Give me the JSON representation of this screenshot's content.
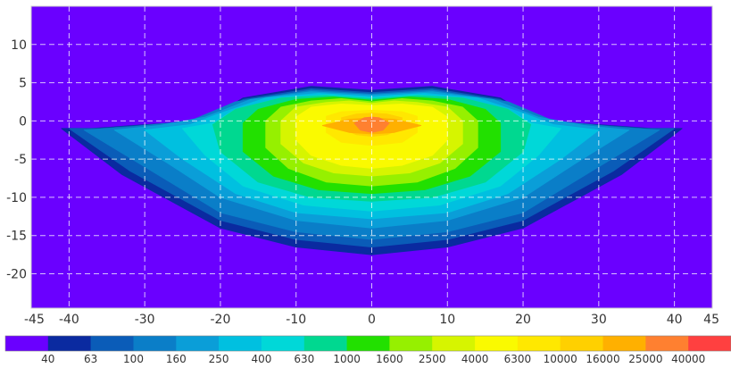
{
  "chart_data": {
    "type": "heatmap",
    "title": "",
    "xlabel": "",
    "ylabel": "",
    "xlim": [
      -45,
      45
    ],
    "ylim": [
      -24.5,
      15
    ],
    "x_ticks": [
      -45,
      -40,
      -30,
      -20,
      -10,
      0,
      10,
      20,
      30,
      40,
      45
    ],
    "y_ticks": [
      10,
      5,
      0,
      -5,
      -10,
      -15,
      -20
    ],
    "grid": true,
    "background_color": "#6a00ff",
    "color_levels": [
      {
        "label": "40",
        "color": "#6a00ff"
      },
      {
        "label": "63",
        "color": "#0a2aa0"
      },
      {
        "label": "100",
        "color": "#0a5cb8"
      },
      {
        "label": "160",
        "color": "#0a7ec8"
      },
      {
        "label": "250",
        "color": "#0a9ed8"
      },
      {
        "label": "400",
        "color": "#00c0e0"
      },
      {
        "label": "630",
        "color": "#00d8d8"
      },
      {
        "label": "1000",
        "color": "#00d890"
      },
      {
        "label": "1600",
        "color": "#22e000"
      },
      {
        "label": "2500",
        "color": "#96f000"
      },
      {
        "label": "4000",
        "color": "#d6f500"
      },
      {
        "label": "6300",
        "color": "#fafa00"
      },
      {
        "label": "10000",
        "color": "#ffe800"
      },
      {
        "label": "16000",
        "color": "#ffd000"
      },
      {
        "label": "25000",
        "color": "#ffb000"
      },
      {
        "label": "40000",
        "color": "#ff8030"
      },
      {
        "label": "",
        "color": "#ff4040"
      }
    ],
    "contours": [
      {
        "level": 1,
        "points": [
          [
            -41,
            -1
          ],
          [
            -37,
            -1
          ],
          [
            -30,
            -0.5
          ],
          [
            -22,
            0
          ],
          [
            -17,
            3
          ],
          [
            -8,
            4.5
          ],
          [
            0,
            4
          ],
          [
            8,
            4.5
          ],
          [
            17,
            3
          ],
          [
            22,
            0
          ],
          [
            30,
            -0.5
          ],
          [
            37,
            -1
          ],
          [
            41,
            -1
          ],
          [
            33,
            -7
          ],
          [
            20,
            -14
          ],
          [
            10,
            -16.5
          ],
          [
            0,
            -17.5
          ],
          [
            -10,
            -16.5
          ],
          [
            -20,
            -14
          ],
          [
            -33,
            -7
          ]
        ]
      },
      {
        "level": 2,
        "points": [
          [
            -40,
            -1
          ],
          [
            -36,
            -1
          ],
          [
            -29,
            -0.5
          ],
          [
            -22,
            0
          ],
          [
            -17,
            2.8
          ],
          [
            -8,
            4.2
          ],
          [
            0,
            3.7
          ],
          [
            8,
            4.2
          ],
          [
            17,
            2.8
          ],
          [
            22,
            0
          ],
          [
            29,
            -0.5
          ],
          [
            36,
            -1
          ],
          [
            40,
            -1
          ],
          [
            32,
            -6.5
          ],
          [
            20,
            -13
          ],
          [
            10,
            -15.5
          ],
          [
            0,
            -16.5
          ],
          [
            -10,
            -15.5
          ],
          [
            -20,
            -13
          ],
          [
            -32,
            -6.5
          ]
        ]
      },
      {
        "level": 3,
        "points": [
          [
            -38,
            -1.2
          ],
          [
            -32,
            -0.8
          ],
          [
            -24,
            0
          ],
          [
            -18,
            2.5
          ],
          [
            -8,
            4
          ],
          [
            0,
            3.5
          ],
          [
            8,
            4
          ],
          [
            18,
            2.5
          ],
          [
            24,
            0
          ],
          [
            32,
            -0.8
          ],
          [
            38,
            -1.2
          ],
          [
            30,
            -6
          ],
          [
            20,
            -12
          ],
          [
            10,
            -14.5
          ],
          [
            0,
            -15.5
          ],
          [
            -10,
            -14.5
          ],
          [
            -20,
            -12
          ],
          [
            -30,
            -6
          ]
        ]
      },
      {
        "level": 4,
        "points": [
          [
            -34,
            -1.2
          ],
          [
            -28,
            -0.6
          ],
          [
            -22,
            0.5
          ],
          [
            -16,
            2.8
          ],
          [
            -8,
            3.8
          ],
          [
            0,
            3.4
          ],
          [
            8,
            3.8
          ],
          [
            16,
            2.8
          ],
          [
            22,
            0.5
          ],
          [
            28,
            -0.6
          ],
          [
            34,
            -1.2
          ],
          [
            27,
            -5.5
          ],
          [
            20,
            -10
          ],
          [
            10,
            -13
          ],
          [
            0,
            -14
          ],
          [
            -10,
            -13
          ],
          [
            -20,
            -10
          ],
          [
            -27,
            -5.5
          ]
        ]
      },
      {
        "level": 5,
        "points": [
          [
            -30,
            -1.2
          ],
          [
            -24,
            -0.5
          ],
          [
            -20,
            1
          ],
          [
            -14,
            3
          ],
          [
            -7,
            3.6
          ],
          [
            0,
            3.2
          ],
          [
            7,
            3.6
          ],
          [
            14,
            3
          ],
          [
            20,
            1
          ],
          [
            24,
            -0.5
          ],
          [
            30,
            -1.2
          ],
          [
            25,
            -5
          ],
          [
            18,
            -9.5
          ],
          [
            10,
            -12
          ],
          [
            0,
            -12.8
          ],
          [
            -10,
            -12
          ],
          [
            -18,
            -9.5
          ],
          [
            -25,
            -5
          ]
        ]
      },
      {
        "level": 6,
        "points": [
          [
            -25,
            -1
          ],
          [
            -21,
            -0.3
          ],
          [
            -18,
            1.5
          ],
          [
            -12,
            3
          ],
          [
            -6,
            3.4
          ],
          [
            0,
            3
          ],
          [
            6,
            3.4
          ],
          [
            12,
            3
          ],
          [
            18,
            1.5
          ],
          [
            21,
            -0.3
          ],
          [
            25,
            -1
          ],
          [
            22,
            -4.5
          ],
          [
            17,
            -8.5
          ],
          [
            9,
            -11
          ],
          [
            0,
            -11.8
          ],
          [
            -9,
            -11
          ],
          [
            -17,
            -8.5
          ],
          [
            -22,
            -4.5
          ]
        ]
      },
      {
        "level": 7,
        "points": [
          [
            -21,
            -0.5
          ],
          [
            -18,
            1.5
          ],
          [
            -12,
            3
          ],
          [
            -6,
            3.3
          ],
          [
            0,
            2.9
          ],
          [
            6,
            3.3
          ],
          [
            12,
            3
          ],
          [
            18,
            1.5
          ],
          [
            21,
            -0.5
          ],
          [
            20,
            -4
          ],
          [
            15,
            -8
          ],
          [
            8,
            -10
          ],
          [
            0,
            -10.5
          ],
          [
            -8,
            -10
          ],
          [
            -15,
            -8
          ],
          [
            -20,
            -4
          ]
        ]
      },
      {
        "level": 8,
        "points": [
          [
            -17,
            -0.3
          ],
          [
            -15,
            1.5
          ],
          [
            -10,
            2.8
          ],
          [
            -5,
            3.1
          ],
          [
            0,
            2.7
          ],
          [
            5,
            3.1
          ],
          [
            10,
            2.8
          ],
          [
            15,
            1.5
          ],
          [
            17,
            -0.3
          ],
          [
            17,
            -4
          ],
          [
            13,
            -7.2
          ],
          [
            7,
            -9
          ],
          [
            0,
            -9.5
          ],
          [
            -7,
            -9
          ],
          [
            -13,
            -7.2
          ],
          [
            -17,
            -4
          ]
        ]
      },
      {
        "level": 9,
        "points": [
          [
            -14,
            0
          ],
          [
            -12,
            1.8
          ],
          [
            -8,
            2.6
          ],
          [
            -4,
            2.9
          ],
          [
            0,
            2.5
          ],
          [
            4,
            2.9
          ],
          [
            8,
            2.6
          ],
          [
            12,
            1.8
          ],
          [
            14,
            0
          ],
          [
            14,
            -3.5
          ],
          [
            11,
            -6.2
          ],
          [
            6,
            -8
          ],
          [
            0,
            -8.5
          ],
          [
            -6,
            -8
          ],
          [
            -11,
            -6.2
          ],
          [
            -14,
            -3.5
          ]
        ]
      },
      {
        "level": 10,
        "points": [
          [
            -12,
            0
          ],
          [
            -10,
            1.8
          ],
          [
            -6,
            2.4
          ],
          [
            -3,
            2.6
          ],
          [
            0,
            2.3
          ],
          [
            3,
            2.6
          ],
          [
            6,
            2.4
          ],
          [
            10,
            1.8
          ],
          [
            12,
            0
          ],
          [
            12,
            -3
          ],
          [
            9,
            -5.5
          ],
          [
            5,
            -6.8
          ],
          [
            0,
            -7.2
          ],
          [
            -5,
            -6.8
          ],
          [
            -9,
            -5.5
          ],
          [
            -12,
            -3
          ]
        ]
      },
      {
        "level": 11,
        "points": [
          [
            -10,
            0.5
          ],
          [
            -8,
            1.8
          ],
          [
            -4,
            2.2
          ],
          [
            0,
            2
          ],
          [
            4,
            2.2
          ],
          [
            8,
            1.8
          ],
          [
            10,
            0.5
          ],
          [
            10,
            -2.5
          ],
          [
            8,
            -4.5
          ],
          [
            4,
            -5.8
          ],
          [
            0,
            -6.2
          ],
          [
            -4,
            -5.8
          ],
          [
            -8,
            -4.5
          ],
          [
            -10,
            -2.5
          ]
        ]
      },
      {
        "level": 12,
        "points": [
          [
            -6,
            0.6
          ],
          [
            -4,
            1.2
          ],
          [
            0,
            1.4
          ],
          [
            4,
            1.2
          ],
          [
            6,
            0.6
          ],
          [
            6,
            -1.5
          ],
          [
            4,
            -2.8
          ],
          [
            0,
            -3.2
          ],
          [
            -4,
            -2.8
          ],
          [
            -6,
            -1.5
          ]
        ]
      },
      {
        "level": 13,
        "points": [
          [
            -4,
            0.4
          ],
          [
            -2,
            0.9
          ],
          [
            0,
            1
          ],
          [
            2,
            0.9
          ],
          [
            4,
            0.4
          ],
          [
            4,
            -1
          ],
          [
            2,
            -1.8
          ],
          [
            0,
            -2
          ],
          [
            -2,
            -1.8
          ],
          [
            -4,
            -1
          ]
        ]
      },
      {
        "level": 14,
        "points": [
          [
            -6.5,
            -0.6
          ],
          [
            -3,
            0.2
          ],
          [
            0,
            0.4
          ],
          [
            3,
            0.2
          ],
          [
            6.5,
            -0.6
          ],
          [
            3,
            -1.5
          ],
          [
            0,
            -1.7
          ],
          [
            -3,
            -1.5
          ]
        ]
      },
      {
        "level": 15,
        "points": [
          [
            -2.3,
            -0.3
          ],
          [
            -1,
            0.4
          ],
          [
            0,
            0.5
          ],
          [
            1,
            0.4
          ],
          [
            2.3,
            -0.3
          ],
          [
            1.5,
            -1.2
          ],
          [
            0,
            -1.5
          ],
          [
            -1.5,
            -1.2
          ]
        ]
      }
    ]
  }
}
